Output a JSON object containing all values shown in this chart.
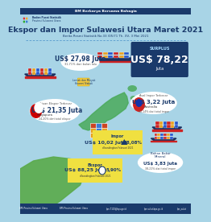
{
  "title": "Ekspor dan Impor Sulawesi Utara Maret 2021",
  "subtitle": "Berita Resmi Statistik No.33 /05/71 Th. XV, 3 Mei 2021",
  "header_bar_color": "#1a3a6b",
  "header_bar_text": "BM Berkarya Bersama Bahagia",
  "bg_color": "#a8d4e6",
  "title_color": "#1a3a6b",
  "surplus_box_color": "#1a3a6b",
  "surplus_label": "SURPLUS",
  "surplus_value": "US$ 78,22",
  "surplus_unit": "Juta",
  "export_bubble_value": "US$ 27,98",
  "export_bubble_unit": "Juta",
  "export_bubble_pct": "31,71% dari bulan lalu",
  "export_label": "Ekspor",
  "export_value": "US$ 88,25",
  "export_unit": "Juta",
  "export_pct": "5,90%",
  "export_pct_label": "dibandingkan Februari 2021",
  "import_label": "Impor",
  "import_value": "US$ 10,02",
  "import_unit": "Juta",
  "import_pct": "48,08%",
  "import_pct_label": "dibandingkan Februari 2021",
  "singapore_label": "Tujuan Ekspor Terbesar",
  "singapore_country": "Singapura",
  "singapore_value": "US$ 21,35",
  "singapore_unit": "Juta",
  "singapore_pct": "24,20% dari total ekspor",
  "australia_label": "Asal Impor Terbesar",
  "australia_country": "Australia",
  "australia_value": "US$ 3,22",
  "australia_unit": "Juta",
  "australia_pct": "32,14% dari total impor",
  "commodity_export_label": "Lemak dan Minyak\nHewani Nabati",
  "commodity_import_label": "Bahan Bakar\nMineral",
  "commodity_import_value": "US$ 3,83",
  "commodity_import_unit": "Juta",
  "commodity_import_pct": "38,21% dari total impor",
  "yellow_box_color": "#f0e040",
  "white_bubble_color": "#ffffff",
  "map_color": "#4aaa5a",
  "footer_text": "BPS Provinsi Sulawesi Utara",
  "navy": "#1a3a6b",
  "dark_teal": "#2a6080"
}
